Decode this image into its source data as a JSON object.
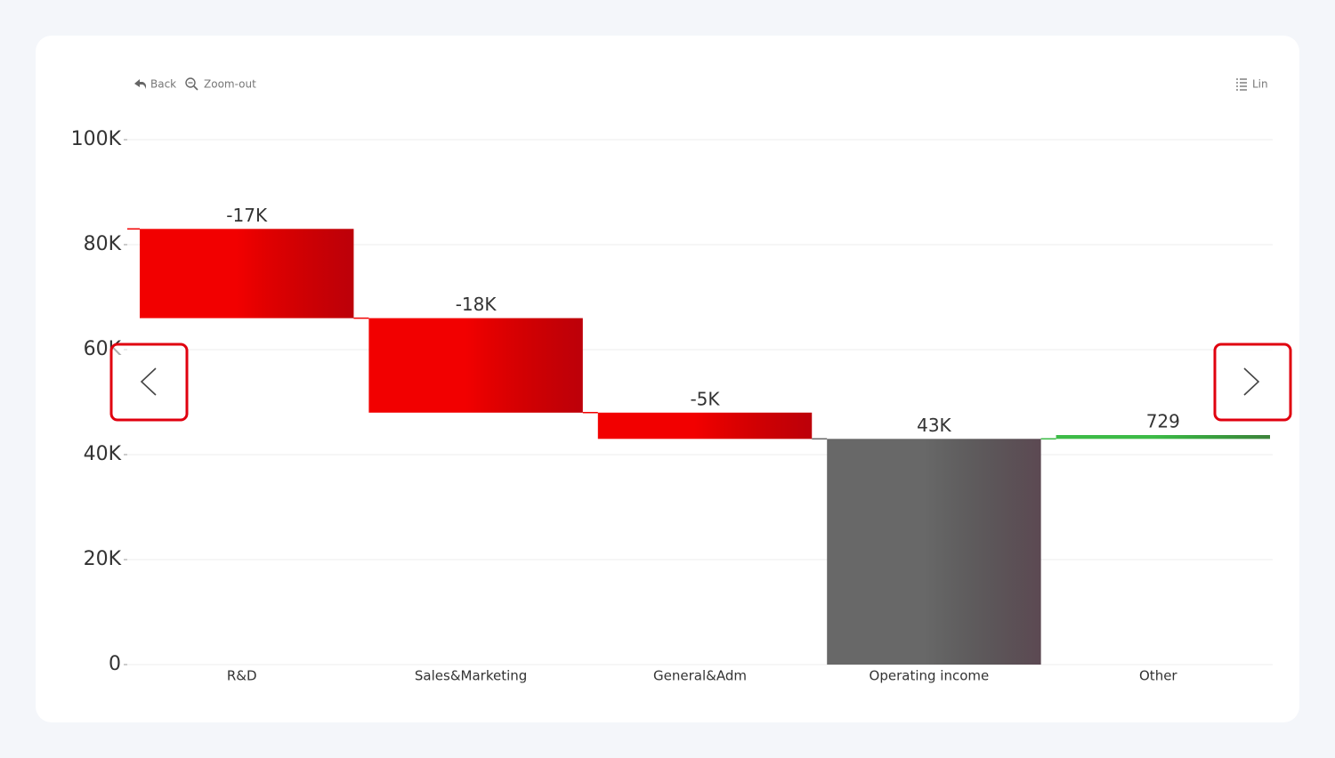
{
  "toolbar": {
    "back": "Back",
    "zoom_out": "Zoom-out",
    "scale": "Lin"
  },
  "chart_data": {
    "type": "waterfall",
    "categories": [
      "R&D",
      "Sales&Marketing",
      "General&Adm",
      "Operating income",
      "Other"
    ],
    "values": [
      -17000,
      -18000,
      -5000,
      43000,
      729
    ],
    "value_labels": [
      "-17K",
      "-18K",
      "-5K",
      "43K",
      "729"
    ],
    "measures": [
      "relative",
      "relative",
      "relative",
      "total",
      "relative"
    ],
    "colors": {
      "decrease": "#f20000",
      "increase": "#3dbb47",
      "total": "#686868"
    },
    "ylim": [
      0,
      100000
    ],
    "yticks": [
      0,
      {
        "value": 20000,
        "label": "20K"
      },
      {
        "value": 40000,
        "label": "40K"
      },
      {
        "value": 60000,
        "label": "60K"
      },
      {
        "value": 80000,
        "label": "80K"
      },
      {
        "value": 100000,
        "label": "100K"
      }
    ],
    "grid": true
  }
}
